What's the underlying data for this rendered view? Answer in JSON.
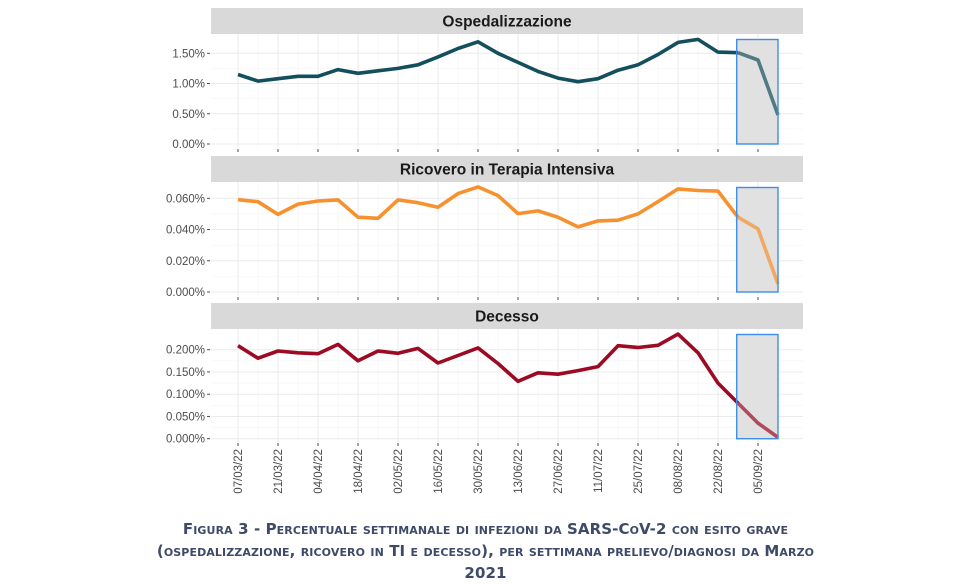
{
  "chart_data": {
    "type": "line",
    "layout": "facet-vertical",
    "x": [
      "07/03/22",
      "14/03/22",
      "21/03/22",
      "28/03/22",
      "04/04/22",
      "11/04/22",
      "18/04/22",
      "25/04/22",
      "02/05/22",
      "09/05/22",
      "16/05/22",
      "23/05/22",
      "30/05/22",
      "06/06/22",
      "13/06/22",
      "20/06/22",
      "27/06/22",
      "04/07/22",
      "11/07/22",
      "18/07/22",
      "25/07/22",
      "01/08/22",
      "08/08/22",
      "15/08/22",
      "22/08/22",
      "29/08/22",
      "05/09/22",
      "12/09/22"
    ],
    "x_tick_labels": [
      "07/03/22",
      "21/03/22",
      "04/04/22",
      "18/04/22",
      "02/05/22",
      "16/05/22",
      "30/05/22",
      "13/06/22",
      "27/06/22",
      "11/07/22",
      "25/07/22",
      "08/08/22",
      "22/08/22",
      "05/09/22"
    ],
    "highlight_region": {
      "from": "29/08/22",
      "to": "12/09/22",
      "note": "shaded incomplete-data window"
    },
    "panels": [
      {
        "title": "Ospedalizzazione",
        "color": "#134f5c",
        "unit": "%",
        "ylim": [
          0,
          1.75
        ],
        "y_ticks": [
          "0.00%",
          "0.50%",
          "1.00%",
          "1.50%"
        ],
        "y_tick_values": [
          0,
          0.5,
          1.0,
          1.5
        ],
        "values": [
          1.15,
          1.04,
          1.08,
          1.12,
          1.12,
          1.23,
          1.17,
          1.21,
          1.25,
          1.31,
          1.44,
          1.58,
          1.69,
          1.5,
          1.35,
          1.2,
          1.09,
          1.03,
          1.08,
          1.22,
          1.31,
          1.48,
          1.68,
          1.73,
          1.52,
          1.51,
          1.39,
          0.48
        ]
      },
      {
        "title": "Ricovero in Terapia Intensiva",
        "color": "#f7912d",
        "unit": "%",
        "ylim": [
          0,
          0.069
        ],
        "y_ticks": [
          "0.000%",
          "0.020%",
          "0.040%",
          "0.060%"
        ],
        "y_tick_values": [
          0,
          0.02,
          0.04,
          0.06
        ],
        "values": [
          0.0591,
          0.0578,
          0.0497,
          0.0563,
          0.0583,
          0.059,
          0.0479,
          0.0472,
          0.059,
          0.0572,
          0.0543,
          0.063,
          0.0673,
          0.0617,
          0.0502,
          0.0519,
          0.0479,
          0.0417,
          0.0455,
          0.046,
          0.05,
          0.0579,
          0.066,
          0.065,
          0.0646,
          0.0479,
          0.0404,
          0.0051
        ]
      },
      {
        "title": "Decesso",
        "color": "#9c0a24",
        "unit": "%",
        "ylim": [
          0,
          0.235
        ],
        "y_ticks": [
          "0.000%",
          "0.050%",
          "0.100%",
          "0.150%",
          "0.200%"
        ],
        "y_tick_values": [
          0,
          0.05,
          0.1,
          0.15,
          0.2
        ],
        "values": [
          0.209,
          0.181,
          0.197,
          0.193,
          0.191,
          0.212,
          0.175,
          0.197,
          0.192,
          0.203,
          0.17,
          0.187,
          0.204,
          0.169,
          0.129,
          0.148,
          0.145,
          0.153,
          0.162,
          0.209,
          0.205,
          0.21,
          0.235,
          0.193,
          0.125,
          0.08,
          0.035,
          0.003
        ]
      }
    ],
    "title": "",
    "xlabel": "",
    "ylabel": "",
    "grid": true,
    "legend": "none"
  },
  "caption": {
    "line1": "Figura 3 - Percentuale settimanale di infezioni da SARS-CoV-2 con esito grave",
    "line2": "(ospedalizzazione, ricovero in TI e decesso), per settimana prelievo/diagnosi da Marzo",
    "line3": "2021"
  }
}
